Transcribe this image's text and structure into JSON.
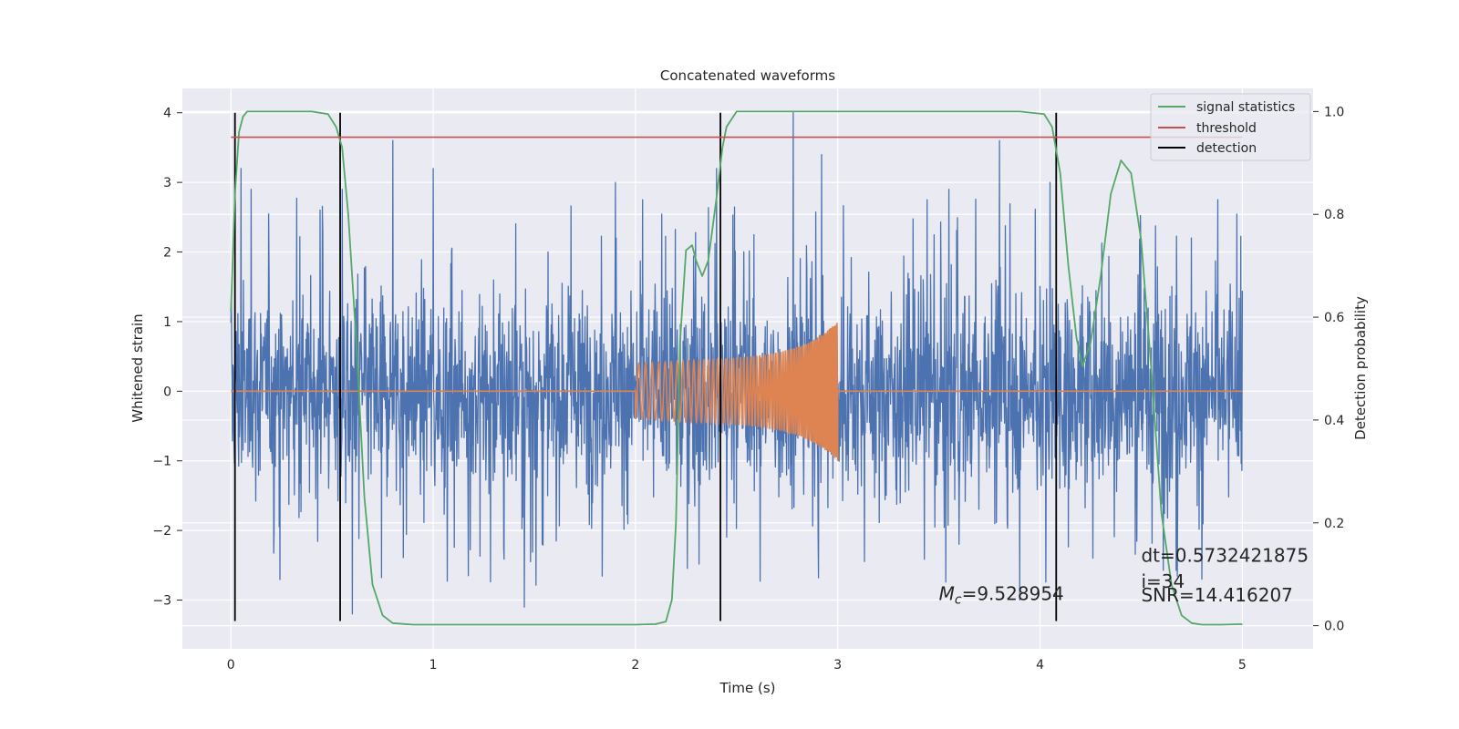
{
  "chart_data": {
    "type": "line",
    "title": "Concatenated waveforms",
    "xlabel": "Time (s)",
    "ylabel": "Whitened strain",
    "y2label": "Detection probability",
    "xlim": [
      -0.24,
      5.35
    ],
    "ylim": [
      -3.7,
      4.35
    ],
    "y2lim": [
      -0.045,
      1.045
    ],
    "x_ticks": [
      0,
      1,
      2,
      3,
      4,
      5
    ],
    "y_ticks": [
      -3,
      -2,
      -1,
      0,
      1,
      2,
      3,
      4
    ],
    "y2_ticks": [
      0.0,
      0.2,
      0.4,
      0.6,
      0.8,
      1.0
    ],
    "grid": true,
    "legend_position": "top-right",
    "legend": [
      "signal statistics",
      "threshold",
      "detection"
    ],
    "colors": {
      "strain": "#4c72b0",
      "template": "#dd8452",
      "signal": "#55a868",
      "threshold": "#c44e52",
      "detection": "#000000",
      "background": "#eaeaf2",
      "grid": "#ffffff"
    },
    "series": [
      {
        "axis": "left",
        "color": "#4c72b0",
        "x_range": [
          0,
          5
        ],
        "envelope_typical": 1.1,
        "peaks": [
          [
            0.05,
            3.2
          ],
          [
            0.1,
            2.9
          ],
          [
            0.55,
            2.9
          ],
          [
            0.6,
            -3.2
          ],
          [
            0.8,
            3.6
          ],
          [
            1.0,
            3.2
          ],
          [
            1.45,
            -3.1
          ],
          [
            1.9,
            3.0
          ],
          [
            2.4,
            3.2
          ],
          [
            2.78,
            4.0
          ],
          [
            2.92,
            3.4
          ],
          [
            3.55,
            2.9
          ],
          [
            3.8,
            3.6
          ],
          [
            3.9,
            -3.0
          ],
          [
            4.05,
            3.0
          ],
          [
            4.8,
            -2.7
          ]
        ]
      },
      {
        "axis": "left",
        "color": "#dd8452",
        "x": [
          0,
          2,
          2,
          2.5,
          3,
          3,
          5
        ],
        "amplitude": [
          0,
          0,
          0.4,
          0.5,
          1.0,
          0,
          0
        ]
      },
      {
        "name": "signal statistics",
        "axis": "right",
        "color": "#55a868",
        "x": [
          0.0,
          0.02,
          0.04,
          0.06,
          0.08,
          0.12,
          0.2,
          0.3,
          0.4,
          0.48,
          0.52,
          0.55,
          0.58,
          0.62,
          0.66,
          0.7,
          0.75,
          0.8,
          0.9,
          1.0,
          1.5,
          2.0,
          2.1,
          2.15,
          2.18,
          2.2,
          2.22,
          2.25,
          2.28,
          2.3,
          2.33,
          2.36,
          2.4,
          2.43,
          2.45,
          2.5,
          2.6,
          3.0,
          3.5,
          3.9,
          4.02,
          4.06,
          4.1,
          4.14,
          4.18,
          4.21,
          4.25,
          4.3,
          4.35,
          4.4,
          4.45,
          4.5,
          4.55,
          4.6,
          4.65,
          4.7,
          4.75,
          4.8,
          4.85,
          4.9,
          5.0
        ],
        "values": [
          0.61,
          0.84,
          0.96,
          0.99,
          1.0,
          1.0,
          1.0,
          1.0,
          1.0,
          0.995,
          0.97,
          0.93,
          0.8,
          0.55,
          0.25,
          0.08,
          0.02,
          0.005,
          0.002,
          0.002,
          0.002,
          0.002,
          0.003,
          0.008,
          0.05,
          0.2,
          0.55,
          0.73,
          0.74,
          0.71,
          0.68,
          0.71,
          0.83,
          0.93,
          0.97,
          1.0,
          1.0,
          1.0,
          1.0,
          1.0,
          0.995,
          0.97,
          0.88,
          0.7,
          0.56,
          0.505,
          0.55,
          0.68,
          0.84,
          0.905,
          0.88,
          0.75,
          0.5,
          0.22,
          0.08,
          0.02,
          0.005,
          0.002,
          0.002,
          0.002,
          0.003
        ]
      },
      {
        "name": "threshold",
        "axis": "right",
        "color": "#c44e52",
        "x": [
          0,
          5
        ],
        "values": [
          0.95,
          0.95
        ]
      },
      {
        "name": "detection",
        "axis": "left",
        "color": "#000000",
        "x": [
          0.02,
          0.54,
          2.42,
          4.08
        ],
        "y_range": [
          -3.3,
          4.0
        ]
      }
    ],
    "annotations": [
      {
        "id": "mc",
        "x": 3.5,
        "y": -3.0,
        "prefix": "M",
        "subscript": "c",
        "text": "=9.528954"
      },
      {
        "id": "dt",
        "x": 4.5,
        "y": -2.45,
        "text": "dt=0.5732421875"
      },
      {
        "id": "idx",
        "x": 4.5,
        "y": -2.82,
        "text": " i=34"
      },
      {
        "id": "snr",
        "x": 4.5,
        "y": -3.02,
        "text": "SNR=14.416207"
      }
    ]
  }
}
